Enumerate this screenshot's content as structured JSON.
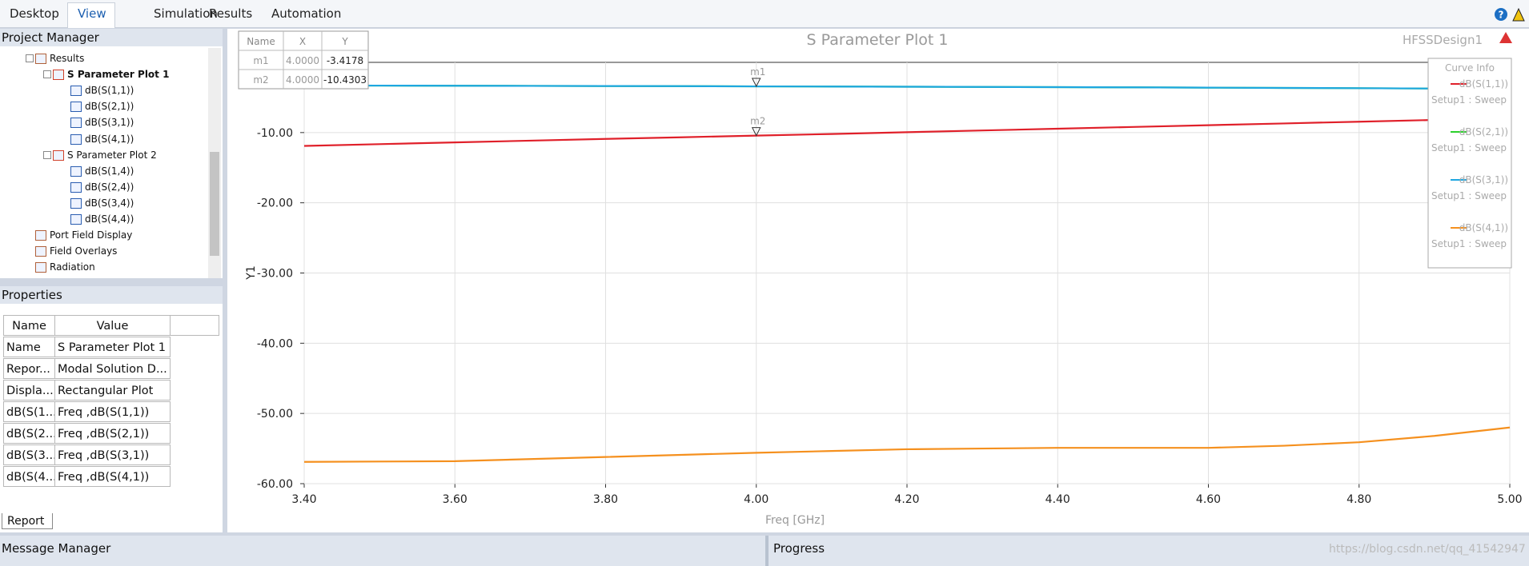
{
  "menu": [
    "Desktop",
    "View",
    "Simulation",
    "Results",
    "Automation"
  ],
  "help_icon": "?",
  "project_manager": {
    "title": "Project Manager",
    "tree": [
      {
        "label": "Results",
        "children": [
          {
            "label": "S Parameter Plot 1",
            "children": [
              {
                "label": "dB(S(1,1))"
              },
              {
                "label": "dB(S(2,1))"
              },
              {
                "label": "dB(S(3,1))"
              },
              {
                "label": "dB(S(4,1))"
              }
            ]
          },
          {
            "label": "S Parameter Plot 2",
            "children": [
              {
                "label": "dB(S(1,4))"
              },
              {
                "label": "dB(S(2,4))"
              },
              {
                "label": "dB(S(3,4))"
              },
              {
                "label": "dB(S(4,4))"
              }
            ]
          }
        ]
      },
      {
        "label": "Port Field Display"
      },
      {
        "label": "Field Overlays"
      },
      {
        "label": "Radiation"
      }
    ]
  },
  "properties": {
    "title": "Properties",
    "columns": [
      "Name",
      "Value"
    ],
    "rows": [
      [
        "Name",
        "S Parameter Plot 1"
      ],
      [
        "Repor...",
        "Modal Solution D..."
      ],
      [
        "Displa...",
        "Rectangular Plot"
      ],
      [
        "dB(S(1...",
        "Freq ,dB(S(1,1))"
      ],
      [
        "dB(S(2...",
        "Freq ,dB(S(2,1))"
      ],
      [
        "dB(S(3...",
        "Freq ,dB(S(3,1))"
      ],
      [
        "dB(S(4...",
        "Freq ,dB(S(4,1))"
      ]
    ],
    "tab": "Report"
  },
  "message_manager": {
    "title": "Message Manager"
  },
  "progress": {
    "title": "Progress"
  },
  "watermark": "https://blog.csdn.net/qq_41542947",
  "chart_data": {
    "type": "line",
    "title": "S Parameter Plot 1",
    "design": "HFSSDesign1",
    "x_label": "Freq [GHz]",
    "y_label": "Y1",
    "x": [
      3.4,
      3.5,
      3.6,
      3.7,
      3.8,
      3.9,
      4.0,
      4.1,
      4.2,
      4.3,
      4.4,
      4.5,
      4.6,
      4.7,
      4.8,
      4.9,
      5.0
    ],
    "series": [
      {
        "name": "dB(S(1,1))",
        "solution": "Setup1 : Sweep",
        "color": "#e0202a",
        "values": [
          -11.9,
          -11.65,
          -11.4,
          -11.15,
          -10.9,
          -10.67,
          -10.43,
          -10.2,
          -9.95,
          -9.7,
          -9.45,
          -9.2,
          -8.95,
          -8.7,
          -8.45,
          -8.2,
          -7.9
        ]
      },
      {
        "name": "dB(S(2,1))",
        "solution": "Setup1 : Sweep",
        "color": "#2bd12b",
        "values": [
          -3.3,
          -3.31,
          -3.33,
          -3.35,
          -3.37,
          -3.39,
          -3.42,
          -3.44,
          -3.47,
          -3.5,
          -3.53,
          -3.56,
          -3.6,
          -3.64,
          -3.68,
          -3.73,
          -3.78
        ]
      },
      {
        "name": "dB(S(3,1))",
        "solution": "Setup1 : Sweep",
        "color": "#1ea7e1",
        "values": [
          -3.3,
          -3.31,
          -3.33,
          -3.35,
          -3.37,
          -3.39,
          -3.42,
          -3.44,
          -3.47,
          -3.5,
          -3.53,
          -3.56,
          -3.6,
          -3.64,
          -3.68,
          -3.73,
          -3.78
        ]
      },
      {
        "name": "dB(S(4,1))",
        "solution": "Setup1 : Sweep",
        "color": "#f5901e",
        "values": [
          -56.9,
          -56.85,
          -56.8,
          -56.5,
          -56.2,
          -55.9,
          -55.6,
          -55.35,
          -55.1,
          -55.0,
          -54.9,
          -54.9,
          -54.9,
          -54.6,
          -54.1,
          -53.2,
          -52.0
        ]
      }
    ],
    "legend_title": "Curve Info",
    "legend": "top-right",
    "grid": true,
    "xlim": [
      3.4,
      5.0
    ],
    "xticks": [
      {
        "value": 3.4,
        "label": "3.40"
      },
      {
        "value": 3.6,
        "label": "3.60"
      },
      {
        "value": 3.8,
        "label": "3.80"
      },
      {
        "value": 4.0,
        "label": "4.00"
      },
      {
        "value": 4.2,
        "label": "4.20"
      },
      {
        "value": 4.4,
        "label": "4.40"
      },
      {
        "value": 4.6,
        "label": "4.60"
      },
      {
        "value": 4.8,
        "label": "4.80"
      },
      {
        "value": 5.0,
        "label": "5.00"
      }
    ],
    "ylim": [
      -60,
      0
    ],
    "yticks": [
      {
        "value": -60,
        "label": "-60.00"
      },
      {
        "value": -50,
        "label": "-50.00"
      },
      {
        "value": -40,
        "label": "-40.00"
      },
      {
        "value": -30,
        "label": "-30.00"
      },
      {
        "value": -20,
        "label": "-20.00"
      },
      {
        "value": -10,
        "label": "-10.00"
      }
    ],
    "marker_columns": [
      "Name",
      "X",
      "Y"
    ],
    "markers": [
      {
        "name": "m1",
        "x": {
          "value": 4.0,
          "label": "4.0000"
        },
        "y": -3.4178
      },
      {
        "name": "m2",
        "x": {
          "value": 4.0,
          "label": "4.0000"
        },
        "y": -10.4303
      }
    ]
  }
}
